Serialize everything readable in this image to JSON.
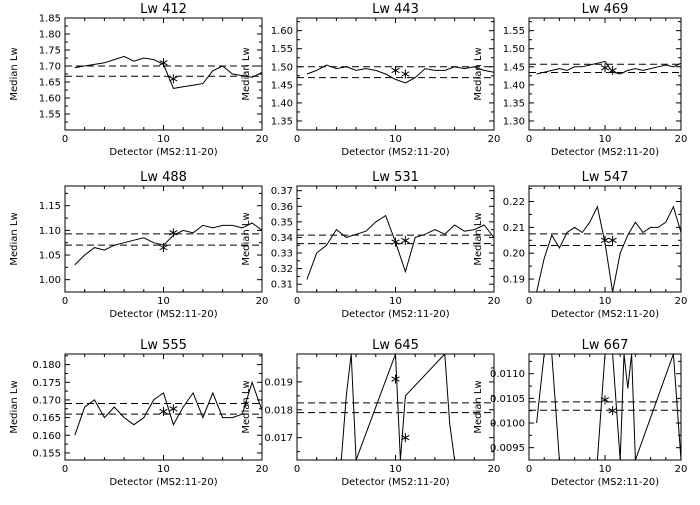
{
  "chart_data": [
    {
      "type": "line",
      "title": "Lw 412",
      "xlabel": "Detector (MS2:11-20)",
      "ylabel": "Median Lw",
      "xlim": [
        0,
        20
      ],
      "ylim": [
        1.5,
        1.85
      ],
      "xticks": [
        0,
        10,
        20
      ],
      "xtick_labels": [
        "0",
        "10",
        "20"
      ],
      "yticks": [
        1.55,
        1.6,
        1.65,
        1.7,
        1.75,
        1.8,
        1.85
      ],
      "ytick_labels": [
        "1.55",
        "1.60",
        "1.65",
        "1.70",
        "1.75",
        "1.80",
        "1.85"
      ],
      "x": [
        1,
        2,
        3,
        4,
        5,
        6,
        7,
        8,
        9,
        10,
        11,
        12,
        13,
        14,
        15,
        16,
        17,
        18,
        19,
        20
      ],
      "values": [
        1.695,
        1.7,
        1.705,
        1.71,
        1.72,
        1.73,
        1.715,
        1.725,
        1.72,
        1.705,
        1.63,
        1.635,
        1.64,
        1.645,
        1.685,
        1.7,
        1.675,
        1.67,
        1.665,
        1.68
      ],
      "markers": [
        {
          "x": 10,
          "y": 1.71
        },
        {
          "x": 11,
          "y": 1.66
        }
      ],
      "dashed_lines": [
        1.7,
        1.668
      ]
    },
    {
      "type": "line",
      "title": "Lw 443",
      "xlabel": "Detector (MS2:11-20)",
      "ylabel": "Median Lw",
      "xlim": [
        0,
        20
      ],
      "ylim": [
        1.325,
        1.635
      ],
      "xticks": [
        0,
        10,
        20
      ],
      "xtick_labels": [
        "0",
        "10",
        "20"
      ],
      "yticks": [
        1.35,
        1.4,
        1.45,
        1.5,
        1.55,
        1.6
      ],
      "ytick_labels": [
        "1.35",
        "1.40",
        "1.45",
        "1.50",
        "1.55",
        "1.60"
      ],
      "x": [
        1,
        2,
        3,
        4,
        5,
        6,
        7,
        8,
        9,
        10,
        11,
        12,
        13,
        14,
        15,
        16,
        17,
        18,
        19,
        20
      ],
      "values": [
        1.48,
        1.49,
        1.505,
        1.495,
        1.5,
        1.49,
        1.495,
        1.49,
        1.48,
        1.465,
        1.455,
        1.47,
        1.495,
        1.49,
        1.49,
        1.5,
        1.495,
        1.5,
        1.49,
        1.485
      ],
      "markers": [
        {
          "x": 10,
          "y": 1.49
        },
        {
          "x": 11,
          "y": 1.48
        }
      ],
      "dashed_lines": [
        1.5,
        1.47
      ]
    },
    {
      "type": "line",
      "title": "Lw 469",
      "xlabel": "Detector (MS2:11-20)",
      "ylabel": "Median Lw",
      "xlim": [
        0,
        20
      ],
      "ylim": [
        1.275,
        1.585
      ],
      "xticks": [
        0,
        10,
        20
      ],
      "xtick_labels": [
        "0",
        "10",
        "20"
      ],
      "yticks": [
        1.3,
        1.35,
        1.4,
        1.45,
        1.5,
        1.55
      ],
      "ytick_labels": [
        "1.30",
        "1.35",
        "1.40",
        "1.45",
        "1.50",
        "1.55"
      ],
      "x": [
        1,
        2,
        3,
        4,
        5,
        6,
        7,
        8,
        9,
        10,
        11,
        12,
        13,
        14,
        15,
        16,
        17,
        18,
        19,
        20
      ],
      "values": [
        1.43,
        1.435,
        1.44,
        1.445,
        1.44,
        1.45,
        1.45,
        1.455,
        1.46,
        1.465,
        1.435,
        1.43,
        1.44,
        1.445,
        1.44,
        1.445,
        1.45,
        1.455,
        1.45,
        1.46
      ],
      "markers": [
        {
          "x": 10,
          "y": 1.447
        },
        {
          "x": 11,
          "y": 1.44
        }
      ],
      "dashed_lines": [
        1.457,
        1.434
      ]
    },
    {
      "type": "line",
      "title": "Lw 488",
      "xlabel": "Detector (MS2:11-20)",
      "ylabel": "Median Lw",
      "xlim": [
        0,
        20
      ],
      "ylim": [
        0.975,
        1.19
      ],
      "xticks": [
        0,
        10,
        20
      ],
      "xtick_labels": [
        "0",
        "10",
        "20"
      ],
      "yticks": [
        1.0,
        1.05,
        1.1,
        1.15
      ],
      "ytick_labels": [
        "1.00",
        "1.05",
        "1.10",
        "1.15"
      ],
      "x": [
        1,
        2,
        3,
        4,
        5,
        6,
        7,
        8,
        9,
        10,
        11,
        12,
        13,
        14,
        15,
        16,
        17,
        18,
        19,
        20
      ],
      "values": [
        1.03,
        1.05,
        1.065,
        1.06,
        1.07,
        1.075,
        1.08,
        1.085,
        1.075,
        1.07,
        1.09,
        1.1,
        1.095,
        1.11,
        1.105,
        1.11,
        1.11,
        1.105,
        1.115,
        1.1
      ],
      "markers": [
        {
          "x": 10,
          "y": 1.065
        },
        {
          "x": 11,
          "y": 1.095
        }
      ],
      "dashed_lines": [
        1.093,
        1.07
      ]
    },
    {
      "type": "line",
      "title": "Lw 531",
      "xlabel": "Detector (MS2:11-20)",
      "ylabel": "Median Lw",
      "xlim": [
        0,
        20
      ],
      "ylim": [
        0.305,
        0.373
      ],
      "xticks": [
        0,
        10,
        20
      ],
      "xtick_labels": [
        "0",
        "10",
        "20"
      ],
      "yticks": [
        0.31,
        0.32,
        0.33,
        0.34,
        0.35,
        0.36,
        0.37
      ],
      "ytick_labels": [
        "0.31",
        "0.32",
        "0.33",
        "0.34",
        "0.35",
        "0.36",
        "0.37"
      ],
      "x": [
        1,
        2,
        3,
        4,
        5,
        6,
        7,
        8,
        9,
        10,
        11,
        12,
        13,
        14,
        15,
        16,
        17,
        18,
        19,
        20
      ],
      "values": [
        0.313,
        0.33,
        0.335,
        0.345,
        0.34,
        0.342,
        0.344,
        0.35,
        0.354,
        0.337,
        0.318,
        0.34,
        0.342,
        0.345,
        0.342,
        0.348,
        0.344,
        0.345,
        0.348,
        0.34
      ],
      "markers": [
        {
          "x": 10,
          "y": 0.337
        },
        {
          "x": 11,
          "y": 0.338
        }
      ],
      "dashed_lines": [
        0.3415,
        0.336
      ]
    },
    {
      "type": "line",
      "title": "Lw 547",
      "xlabel": "Detector (MS2:11-20)",
      "ylabel": "Median Lw",
      "xlim": [
        0,
        20
      ],
      "ylim": [
        0.185,
        0.226
      ],
      "xticks": [
        0,
        10,
        20
      ],
      "xtick_labels": [
        "0",
        "10",
        "20"
      ],
      "yticks": [
        0.19,
        0.2,
        0.21,
        0.22
      ],
      "ytick_labels": [
        "0.19",
        "0.20",
        "0.21",
        "0.22"
      ],
      "x": [
        1,
        2,
        3,
        4,
        5,
        6,
        7,
        8,
        9,
        10,
        11,
        12,
        13,
        14,
        15,
        16,
        17,
        18,
        19,
        20
      ],
      "values": [
        0.185,
        0.198,
        0.207,
        0.202,
        0.208,
        0.21,
        0.208,
        0.212,
        0.218,
        0.204,
        0.185,
        0.2,
        0.207,
        0.212,
        0.208,
        0.21,
        0.21,
        0.212,
        0.218,
        0.208
      ],
      "markers": [
        {
          "x": 10,
          "y": 0.205
        },
        {
          "x": 11,
          "y": 0.205
        }
      ],
      "dashed_lines": [
        0.2075,
        0.203
      ]
    },
    {
      "type": "line",
      "title": "Lw 555",
      "xlabel": "Detector (MS2:11-20)",
      "ylabel": "Median Lw",
      "xlim": [
        0,
        20
      ],
      "ylim": [
        0.153,
        0.183
      ],
      "xticks": [
        0,
        10,
        20
      ],
      "xtick_labels": [
        "0",
        "10",
        "20"
      ],
      "yticks": [
        0.155,
        0.16,
        0.165,
        0.17,
        0.175,
        0.18
      ],
      "ytick_labels": [
        "0.155",
        "0.160",
        "0.165",
        "0.170",
        "0.175",
        "0.180"
      ],
      "x": [
        1,
        2,
        3,
        4,
        5,
        6,
        7,
        8,
        9,
        10,
        11,
        12,
        13,
        14,
        15,
        16,
        17,
        18,
        19,
        20
      ],
      "values": [
        0.16,
        0.168,
        0.17,
        0.165,
        0.168,
        0.165,
        0.163,
        0.165,
        0.17,
        0.172,
        0.163,
        0.168,
        0.172,
        0.165,
        0.172,
        0.165,
        0.165,
        0.166,
        0.175,
        0.167
      ],
      "markers": [
        {
          "x": 10,
          "y": 0.1667
        },
        {
          "x": 11,
          "y": 0.1675
        }
      ],
      "dashed_lines": [
        0.169,
        0.166
      ]
    },
    {
      "type": "line",
      "title": "Lw 645",
      "xlabel": "Detector (MS2:11-20)",
      "ylabel": "Median Lw",
      "xlim": [
        0,
        20
      ],
      "ylim": [
        0.0162,
        0.02
      ],
      "xticks": [
        0,
        10,
        20
      ],
      "xtick_labels": [
        "0",
        "10",
        "20"
      ],
      "yticks": [
        0.017,
        0.018,
        0.019
      ],
      "ytick_labels": [
        "0.017",
        "0.018",
        "0.019"
      ],
      "x": [
        4.5,
        5,
        5.5,
        6,
        10,
        10.5,
        11,
        15,
        15.5,
        16
      ],
      "values": [
        0.0162,
        0.0185,
        0.02,
        0.0162,
        0.02,
        0.0162,
        0.0185,
        0.02,
        0.0175,
        0.0162
      ],
      "markers": [
        {
          "x": 10,
          "y": 0.0191
        },
        {
          "x": 11,
          "y": 0.017
        }
      ],
      "dashed_lines": [
        0.01825,
        0.0179
      ]
    },
    {
      "type": "line",
      "title": "Lw 667",
      "xlabel": "Detector (MS2:11-20)",
      "ylabel": "Median Lw",
      "xlim": [
        0,
        20
      ],
      "ylim": [
        0.00925,
        0.0114
      ],
      "xticks": [
        0,
        10,
        20
      ],
      "xtick_labels": [
        "0",
        "10",
        "20"
      ],
      "yticks": [
        0.0095,
        0.01,
        0.0105,
        0.011
      ],
      "ytick_labels": [
        "0.0095",
        "0.0100",
        "0.0105",
        "0.0110"
      ],
      "x": [
        1,
        2,
        3,
        4,
        9,
        10,
        10.5,
        11,
        12,
        12.5,
        13,
        13.5,
        14,
        19,
        20
      ],
      "values": [
        0.01,
        0.0114,
        0.0114,
        0.00925,
        0.00925,
        0.0114,
        0.0114,
        0.0114,
        0.00925,
        0.0114,
        0.0107,
        0.0114,
        0.00925,
        0.0114,
        0.00925
      ],
      "markers": [
        {
          "x": 10,
          "y": 0.01047
        },
        {
          "x": 11,
          "y": 0.01025
        }
      ],
      "dashed_lines": [
        0.01043,
        0.01026
      ]
    }
  ]
}
